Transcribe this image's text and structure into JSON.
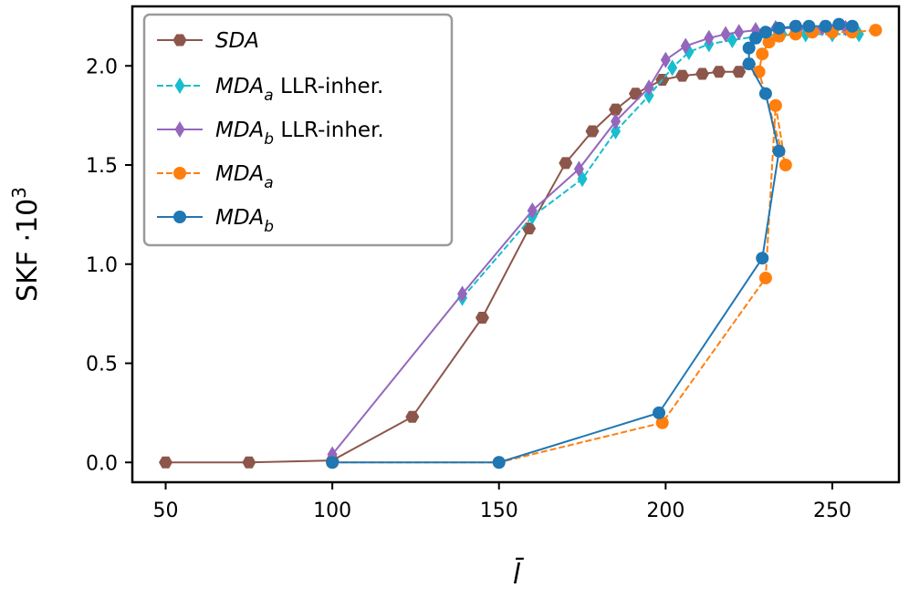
{
  "chart_data": {
    "type": "line",
    "xlabel": "l̄",
    "ylabel_main": "SKF ·10",
    "ylabel_exp": "3",
    "xlim": [
      40,
      270
    ],
    "ylim": [
      -0.1,
      2.3
    ],
    "xticks": [
      50,
      100,
      150,
      200,
      250
    ],
    "yticks": [
      0.0,
      0.5,
      1.0,
      1.5,
      2.0
    ],
    "xtick_labels": [
      "50",
      "100",
      "150",
      "200",
      "250"
    ],
    "ytick_labels": [
      "0.0",
      "0.5",
      "1.0",
      "1.5",
      "2.0"
    ],
    "legend_position": "top-left",
    "series": [
      {
        "name": "SDA",
        "legend_main": "SDA",
        "legend_sub": "",
        "legend_suffix": "",
        "color": "#8c564b",
        "marker": "hexagon",
        "dash": "solid",
        "x": [
          50,
          75,
          100,
          124,
          145,
          159,
          170,
          178,
          185,
          191,
          199,
          205,
          211,
          216,
          222,
          225
        ],
        "y": [
          0.0,
          0.0,
          0.01,
          0.23,
          0.73,
          1.18,
          1.51,
          1.67,
          1.78,
          1.86,
          1.93,
          1.95,
          1.96,
          1.97,
          1.97,
          2.01
        ]
      },
      {
        "name": "MDA_a LLR-inher.",
        "legend_main": "MDA",
        "legend_sub": "a",
        "legend_suffix": " LLR-inher.",
        "color": "#17becf",
        "marker": "thin_diamond",
        "dash": "dashed",
        "x": [
          139,
          160,
          175,
          185,
          195,
          202,
          207,
          213,
          220,
          228,
          235,
          242,
          250,
          258
        ],
        "y": [
          0.83,
          1.24,
          1.43,
          1.67,
          1.85,
          1.99,
          2.07,
          2.11,
          2.13,
          2.15,
          2.16,
          2.16,
          2.16,
          2.16
        ]
      },
      {
        "name": "MDA_b LLR-inher.",
        "legend_main": "MDA",
        "legend_sub": "b",
        "legend_suffix": " LLR-inher.",
        "color": "#9467bd",
        "marker": "thin_diamond",
        "dash": "solid",
        "x": [
          100,
          139,
          160,
          174,
          185,
          195,
          200,
          206,
          213,
          218,
          222,
          227,
          233,
          240,
          247,
          254
        ],
        "y": [
          0.04,
          0.85,
          1.27,
          1.48,
          1.72,
          1.89,
          2.03,
          2.1,
          2.14,
          2.16,
          2.17,
          2.18,
          2.19,
          2.19,
          2.19,
          2.19
        ]
      },
      {
        "name": "MDA_a",
        "legend_main": "MDA",
        "legend_sub": "a",
        "legend_suffix": "",
        "color": "#ff7f0e",
        "marker": "circle",
        "dash": "dashed",
        "x": [
          100,
          150,
          199,
          230,
          233,
          236,
          228,
          229,
          231,
          234,
          239,
          244,
          250,
          256,
          263
        ],
        "y": [
          0.0,
          0.0,
          0.2,
          0.93,
          1.8,
          1.5,
          1.97,
          2.06,
          2.12,
          2.15,
          2.16,
          2.17,
          2.17,
          2.17,
          2.18
        ]
      },
      {
        "name": "MDA_b",
        "legend_main": "MDA",
        "legend_sub": "b",
        "legend_suffix": "",
        "color": "#1f77b4",
        "marker": "circle",
        "dash": "solid",
        "x": [
          100,
          150,
          198,
          229,
          234,
          230,
          225,
          225,
          227,
          230,
          234,
          239,
          243,
          248,
          252,
          256
        ],
        "y": [
          0.0,
          0.0,
          0.25,
          1.03,
          1.57,
          1.86,
          2.01,
          2.09,
          2.14,
          2.17,
          2.19,
          2.2,
          2.2,
          2.2,
          2.21,
          2.2
        ]
      }
    ]
  }
}
